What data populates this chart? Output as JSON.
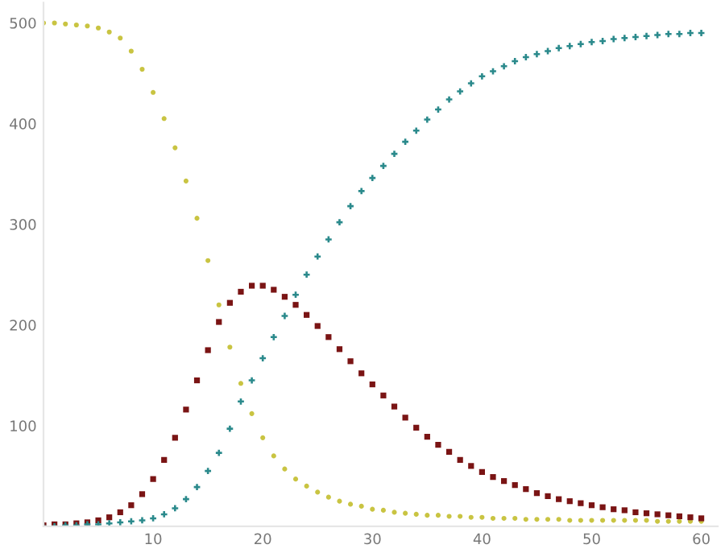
{
  "chart_data": {
    "type": "scatter",
    "x": [
      0,
      1,
      2,
      3,
      4,
      5,
      6,
      7,
      8,
      9,
      10,
      11,
      12,
      13,
      14,
      15,
      16,
      17,
      18,
      19,
      20,
      21,
      22,
      23,
      24,
      25,
      26,
      27,
      28,
      29,
      30,
      31,
      32,
      33,
      34,
      35,
      36,
      37,
      38,
      39,
      40,
      41,
      42,
      43,
      44,
      45,
      46,
      47,
      48,
      49,
      50,
      51,
      52,
      53,
      54,
      55,
      56,
      57,
      58,
      59,
      60
    ],
    "series": [
      {
        "color": "#c9c442",
        "marker": "circle",
        "values": [
          500,
          500,
          499,
          498,
          497,
          495,
          491,
          485,
          472,
          454,
          431,
          405,
          376,
          343,
          306,
          264,
          220,
          178,
          142,
          112,
          88,
          70,
          57,
          47,
          40,
          34,
          29,
          25,
          22,
          20,
          17,
          16,
          14,
          13,
          12,
          11,
          11,
          10,
          10,
          9,
          9,
          8,
          8,
          8,
          7,
          7,
          7,
          7,
          6,
          6,
          6,
          6,
          6,
          6,
          6,
          6,
          5,
          5,
          5,
          5,
          5
        ]
      },
      {
        "color": "#7a1414",
        "marker": "square",
        "values": [
          1,
          2,
          2,
          3,
          4,
          6,
          9,
          14,
          21,
          32,
          47,
          66,
          88,
          116,
          145,
          175,
          203,
          222,
          233,
          239,
          239,
          235,
          228,
          220,
          210,
          199,
          188,
          176,
          164,
          152,
          141,
          130,
          119,
          108,
          98,
          89,
          81,
          74,
          66,
          60,
          54,
          49,
          45,
          41,
          37,
          33,
          30,
          27,
          25,
          23,
          21,
          19,
          17,
          16,
          14,
          13,
          12,
          11,
          10,
          9,
          8
        ]
      },
      {
        "color": "#2b8a8c",
        "marker": "cross",
        "values": [
          0,
          0,
          1,
          1,
          2,
          2,
          3,
          4,
          5,
          6,
          8,
          12,
          18,
          27,
          39,
          55,
          73,
          97,
          124,
          145,
          167,
          188,
          209,
          230,
          250,
          268,
          285,
          302,
          318,
          333,
          346,
          358,
          370,
          382,
          393,
          404,
          414,
          424,
          432,
          440,
          447,
          452,
          457,
          462,
          466,
          469,
          472,
          475,
          477,
          479,
          481,
          482,
          484,
          485,
          486,
          487,
          488,
          489,
          489,
          490,
          490
        ]
      }
    ],
    "xlim": [
      0,
      61.5
    ],
    "ylim": [
      0,
      520
    ],
    "xticks": [
      10,
      20,
      30,
      40,
      50,
      60
    ],
    "yticks": [
      100,
      200,
      300,
      400,
      500
    ],
    "grid": false
  }
}
